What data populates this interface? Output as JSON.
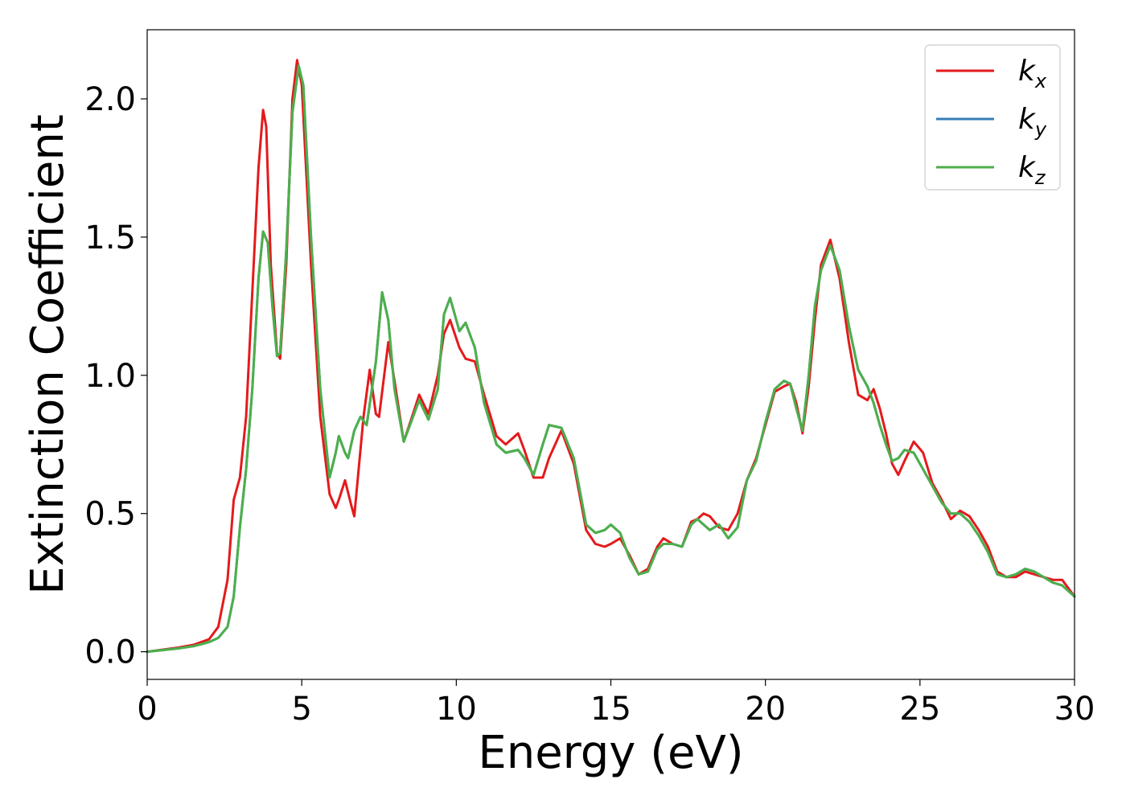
{
  "chart_data": {
    "type": "line",
    "xlabel": "Energy (eV)",
    "ylabel": "Extinction Coefficient",
    "xlim": [
      0,
      30
    ],
    "ylim": [
      -0.1,
      2.25
    ],
    "xticks": [
      0,
      5,
      10,
      15,
      20,
      25,
      30
    ],
    "yticks": [
      0.0,
      0.5,
      1.0,
      1.5,
      2.0
    ],
    "xtick_labels": [
      "0",
      "5",
      "10",
      "15",
      "20",
      "25",
      "30"
    ],
    "ytick_labels": [
      "0.0",
      "0.5",
      "1.0",
      "1.5",
      "2.0"
    ],
    "grid": false,
    "legend_position": "top-right",
    "series": [
      {
        "name": "k",
        "subscript": "x",
        "color": "#e41a1c",
        "x": [
          0,
          1,
          1.5,
          2,
          2.3,
          2.6,
          2.8,
          3.0,
          3.2,
          3.4,
          3.6,
          3.75,
          3.85,
          4.0,
          4.2,
          4.3,
          4.5,
          4.7,
          4.85,
          5.0,
          5.3,
          5.6,
          5.9,
          6.1,
          6.2,
          6.4,
          6.6,
          6.7,
          7.0,
          7.2,
          7.4,
          7.5,
          7.8,
          8.0,
          8.3,
          8.6,
          8.8,
          9.1,
          9.4,
          9.6,
          9.8,
          10.1,
          10.3,
          10.6,
          10.9,
          11.3,
          11.6,
          12.0,
          12.2,
          12.5,
          12.8,
          13.0,
          13.4,
          13.8,
          14.2,
          14.5,
          14.8,
          15.0,
          15.3,
          15.6,
          15.9,
          16.2,
          16.5,
          16.7,
          17.0,
          17.3,
          17.6,
          17.8,
          18.0,
          18.2,
          18.5,
          18.8,
          19.1,
          19.4,
          19.7,
          20.0,
          20.3,
          20.6,
          20.8,
          21.0,
          21.2,
          21.4,
          21.6,
          21.8,
          22.1,
          22.4,
          22.7,
          23.0,
          23.3,
          23.5,
          23.7,
          23.9,
          24.1,
          24.3,
          24.5,
          24.8,
          25.1,
          25.4,
          25.7,
          26.0,
          26.3,
          26.6,
          26.9,
          27.2,
          27.5,
          27.8,
          28.1,
          28.4,
          28.7,
          29.0,
          29.3,
          29.6,
          30.0
        ],
        "y": [
          0.0,
          0.015,
          0.025,
          0.045,
          0.09,
          0.26,
          0.55,
          0.63,
          0.85,
          1.3,
          1.75,
          1.96,
          1.9,
          1.4,
          1.08,
          1.06,
          1.4,
          2.0,
          2.14,
          2.05,
          1.4,
          0.85,
          0.57,
          0.52,
          0.55,
          0.62,
          0.53,
          0.49,
          0.85,
          1.02,
          0.86,
          0.85,
          1.12,
          0.98,
          0.76,
          0.86,
          0.93,
          0.86,
          1.0,
          1.15,
          1.2,
          1.1,
          1.06,
          1.05,
          0.93,
          0.78,
          0.75,
          0.79,
          0.73,
          0.63,
          0.63,
          0.7,
          0.8,
          0.68,
          0.44,
          0.39,
          0.38,
          0.39,
          0.41,
          0.35,
          0.28,
          0.3,
          0.38,
          0.41,
          0.39,
          0.38,
          0.47,
          0.48,
          0.5,
          0.49,
          0.45,
          0.44,
          0.5,
          0.62,
          0.7,
          0.82,
          0.94,
          0.96,
          0.97,
          0.9,
          0.79,
          0.96,
          1.2,
          1.4,
          1.49,
          1.35,
          1.12,
          0.93,
          0.91,
          0.95,
          0.88,
          0.79,
          0.68,
          0.64,
          0.69,
          0.76,
          0.72,
          0.61,
          0.55,
          0.48,
          0.51,
          0.49,
          0.44,
          0.38,
          0.29,
          0.27,
          0.27,
          0.29,
          0.28,
          0.27,
          0.26,
          0.26,
          0.2
        ]
      },
      {
        "name": "k",
        "subscript": "y",
        "color": "#377eb8",
        "x": [
          0,
          1,
          1.5,
          2,
          2.3,
          2.6,
          2.8,
          3.0,
          3.2,
          3.4,
          3.6,
          3.75,
          3.9,
          4.05,
          4.2,
          4.3,
          4.5,
          4.7,
          4.9,
          5.05,
          5.3,
          5.6,
          5.9,
          6.1,
          6.2,
          6.4,
          6.5,
          6.7,
          6.9,
          7.1,
          7.4,
          7.6,
          7.8,
          8.0,
          8.3,
          8.5,
          8.8,
          9.1,
          9.4,
          9.6,
          9.8,
          10.1,
          10.3,
          10.6,
          10.9,
          11.3,
          11.6,
          12.0,
          12.2,
          12.5,
          12.8,
          13.0,
          13.4,
          13.8,
          14.2,
          14.5,
          14.8,
          15.0,
          15.3,
          15.6,
          15.9,
          16.2,
          16.5,
          16.7,
          17.0,
          17.3,
          17.6,
          17.8,
          18.0,
          18.2,
          18.5,
          18.8,
          19.1,
          19.4,
          19.7,
          20.0,
          20.3,
          20.6,
          20.8,
          21.0,
          21.2,
          21.4,
          21.6,
          21.8,
          22.1,
          22.4,
          22.7,
          23.0,
          23.3,
          23.5,
          23.7,
          23.9,
          24.1,
          24.3,
          24.5,
          24.8,
          25.1,
          25.4,
          25.7,
          26.0,
          26.3,
          26.6,
          26.9,
          27.2,
          27.5,
          27.8,
          28.1,
          28.4,
          28.7,
          29.0,
          29.3,
          29.6,
          30.0
        ],
        "y": [
          0.0,
          0.012,
          0.02,
          0.035,
          0.05,
          0.09,
          0.2,
          0.45,
          0.66,
          0.95,
          1.35,
          1.52,
          1.48,
          1.25,
          1.07,
          1.08,
          1.45,
          1.95,
          2.12,
          2.05,
          1.5,
          0.95,
          0.63,
          0.72,
          0.78,
          0.72,
          0.7,
          0.8,
          0.85,
          0.82,
          1.05,
          1.3,
          1.2,
          0.95,
          0.76,
          0.82,
          0.91,
          0.84,
          0.95,
          1.22,
          1.28,
          1.16,
          1.19,
          1.1,
          0.9,
          0.75,
          0.72,
          0.73,
          0.7,
          0.64,
          0.75,
          0.82,
          0.81,
          0.7,
          0.46,
          0.43,
          0.44,
          0.46,
          0.43,
          0.34,
          0.28,
          0.29,
          0.37,
          0.39,
          0.39,
          0.38,
          0.46,
          0.48,
          0.46,
          0.44,
          0.46,
          0.41,
          0.45,
          0.62,
          0.69,
          0.83,
          0.95,
          0.98,
          0.97,
          0.88,
          0.8,
          1.0,
          1.25,
          1.38,
          1.47,
          1.38,
          1.18,
          1.02,
          0.96,
          0.9,
          0.82,
          0.75,
          0.69,
          0.7,
          0.73,
          0.72,
          0.66,
          0.6,
          0.54,
          0.5,
          0.5,
          0.47,
          0.42,
          0.36,
          0.28,
          0.27,
          0.28,
          0.3,
          0.29,
          0.27,
          0.25,
          0.24,
          0.2
        ]
      },
      {
        "name": "k",
        "subscript": "z",
        "color": "#4daf4a",
        "x": [
          0,
          1,
          1.5,
          2,
          2.3,
          2.6,
          2.8,
          3.0,
          3.2,
          3.4,
          3.6,
          3.75,
          3.9,
          4.05,
          4.2,
          4.3,
          4.5,
          4.7,
          4.9,
          5.05,
          5.3,
          5.6,
          5.9,
          6.1,
          6.2,
          6.4,
          6.5,
          6.7,
          6.9,
          7.1,
          7.4,
          7.6,
          7.8,
          8.0,
          8.3,
          8.5,
          8.8,
          9.1,
          9.4,
          9.6,
          9.8,
          10.1,
          10.3,
          10.6,
          10.9,
          11.3,
          11.6,
          12.0,
          12.2,
          12.5,
          12.8,
          13.0,
          13.4,
          13.8,
          14.2,
          14.5,
          14.8,
          15.0,
          15.3,
          15.6,
          15.9,
          16.2,
          16.5,
          16.7,
          17.0,
          17.3,
          17.6,
          17.8,
          18.0,
          18.2,
          18.5,
          18.8,
          19.1,
          19.4,
          19.7,
          20.0,
          20.3,
          20.6,
          20.8,
          21.0,
          21.2,
          21.4,
          21.6,
          21.8,
          22.1,
          22.4,
          22.7,
          23.0,
          23.3,
          23.5,
          23.7,
          23.9,
          24.1,
          24.3,
          24.5,
          24.8,
          25.1,
          25.4,
          25.7,
          26.0,
          26.3,
          26.6,
          26.9,
          27.2,
          27.5,
          27.8,
          28.1,
          28.4,
          28.7,
          29.0,
          29.3,
          29.6,
          30.0
        ],
        "y": [
          0.0,
          0.012,
          0.02,
          0.035,
          0.05,
          0.09,
          0.2,
          0.45,
          0.66,
          0.95,
          1.35,
          1.52,
          1.48,
          1.25,
          1.07,
          1.08,
          1.45,
          1.95,
          2.12,
          2.05,
          1.5,
          0.95,
          0.63,
          0.72,
          0.78,
          0.72,
          0.7,
          0.8,
          0.85,
          0.82,
          1.05,
          1.3,
          1.2,
          0.95,
          0.76,
          0.82,
          0.91,
          0.84,
          0.95,
          1.22,
          1.28,
          1.16,
          1.19,
          1.1,
          0.9,
          0.75,
          0.72,
          0.73,
          0.7,
          0.64,
          0.75,
          0.82,
          0.81,
          0.7,
          0.46,
          0.43,
          0.44,
          0.46,
          0.43,
          0.34,
          0.28,
          0.29,
          0.37,
          0.39,
          0.39,
          0.38,
          0.46,
          0.48,
          0.46,
          0.44,
          0.46,
          0.41,
          0.45,
          0.62,
          0.69,
          0.83,
          0.95,
          0.98,
          0.97,
          0.88,
          0.8,
          1.0,
          1.25,
          1.38,
          1.47,
          1.38,
          1.18,
          1.02,
          0.96,
          0.9,
          0.82,
          0.75,
          0.69,
          0.7,
          0.73,
          0.72,
          0.66,
          0.6,
          0.54,
          0.5,
          0.5,
          0.47,
          0.42,
          0.36,
          0.28,
          0.27,
          0.28,
          0.3,
          0.29,
          0.27,
          0.25,
          0.24,
          0.2
        ]
      }
    ]
  }
}
